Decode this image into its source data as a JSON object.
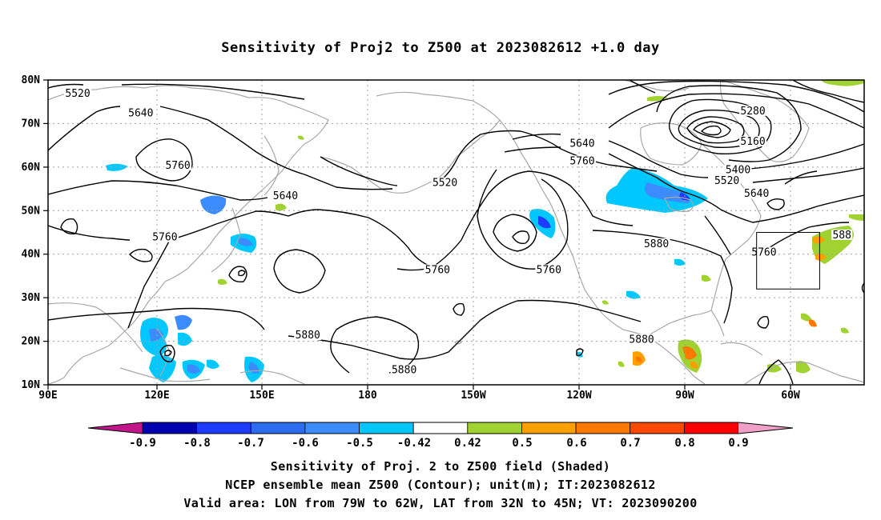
{
  "title": "Sensitivity of Proj2 to Z500 at 2023082612 +1.0 day",
  "axes": {
    "x_ticks": [
      "90E",
      "120E",
      "150E",
      "180",
      "150W",
      "120W",
      "90W",
      "60W"
    ],
    "y_ticks": [
      "80N",
      "70N",
      "60N",
      "50N",
      "40N",
      "30N",
      "20N",
      "10N"
    ]
  },
  "contour_labels": [
    {
      "text": "5520",
      "lon": 98,
      "lat": 76.5
    },
    {
      "text": "5640",
      "lon": 115,
      "lat": 72
    },
    {
      "text": "5760",
      "lon": 125,
      "lat": 60
    },
    {
      "text": "5640",
      "lon": 154,
      "lat": 53
    },
    {
      "text": "5760",
      "lon": 121.5,
      "lat": 43.5
    },
    {
      "text": "5880",
      "lon": 160,
      "lat": 21
    },
    {
      "text": "5880",
      "lon": 186,
      "lat": 13
    },
    {
      "text": "5520",
      "lon": 197,
      "lat": 56
    },
    {
      "text": "5760",
      "lon": 195,
      "lat": 36
    },
    {
      "text": "5760",
      "lon": 225,
      "lat": 36
    },
    {
      "text": "5640",
      "lon": 234,
      "lat": 65
    },
    {
      "text": "5760",
      "lon": 234,
      "lat": 61
    },
    {
      "text": "5880",
      "lon": 254,
      "lat": 42
    },
    {
      "text": "5880",
      "lon": 250,
      "lat": 20
    },
    {
      "text": "5280",
      "lon": 280,
      "lat": 72.5
    },
    {
      "text": "5160",
      "lon": 280,
      "lat": 65.5
    },
    {
      "text": "5400",
      "lon": 276,
      "lat": 59
    },
    {
      "text": "5520",
      "lon": 273,
      "lat": 56.5
    },
    {
      "text": "5640",
      "lon": 281,
      "lat": 53.5
    },
    {
      "text": "5760",
      "lon": 283,
      "lat": 40
    },
    {
      "text": "588",
      "lon": 304,
      "lat": 44
    }
  ],
  "valid_area": {
    "lon_from": -79,
    "lon_to": -62,
    "lat_from": 32,
    "lat_to": 45
  },
  "colorbar": {
    "labels": [
      "-0.9",
      "-0.8",
      "-0.7",
      "-0.6",
      "-0.5",
      "-0.42",
      "0.42",
      "0.5",
      "0.6",
      "0.7",
      "0.8",
      "0.9"
    ],
    "colors": {
      "below": "#c1168a",
      "bins": [
        "#0000b0",
        "#1e3cff",
        "#2c6cf0",
        "#3c8cff",
        "#00c8ff",
        "#ffffff",
        "#a0d232",
        "#ffa000",
        "#ff7800",
        "#ff4800",
        "#ff0000"
      ],
      "above": "#f0a0c8"
    }
  },
  "captions": [
    "Sensitivity of Proj. 2 to Z500 field (Shaded)",
    "NCEP ensemble mean Z500 (Contour); unit(m); IT:2023082612",
    "Valid area: LON from 79W to 62W, LAT from 32N to 45N; VT: 2023090200"
  ]
}
